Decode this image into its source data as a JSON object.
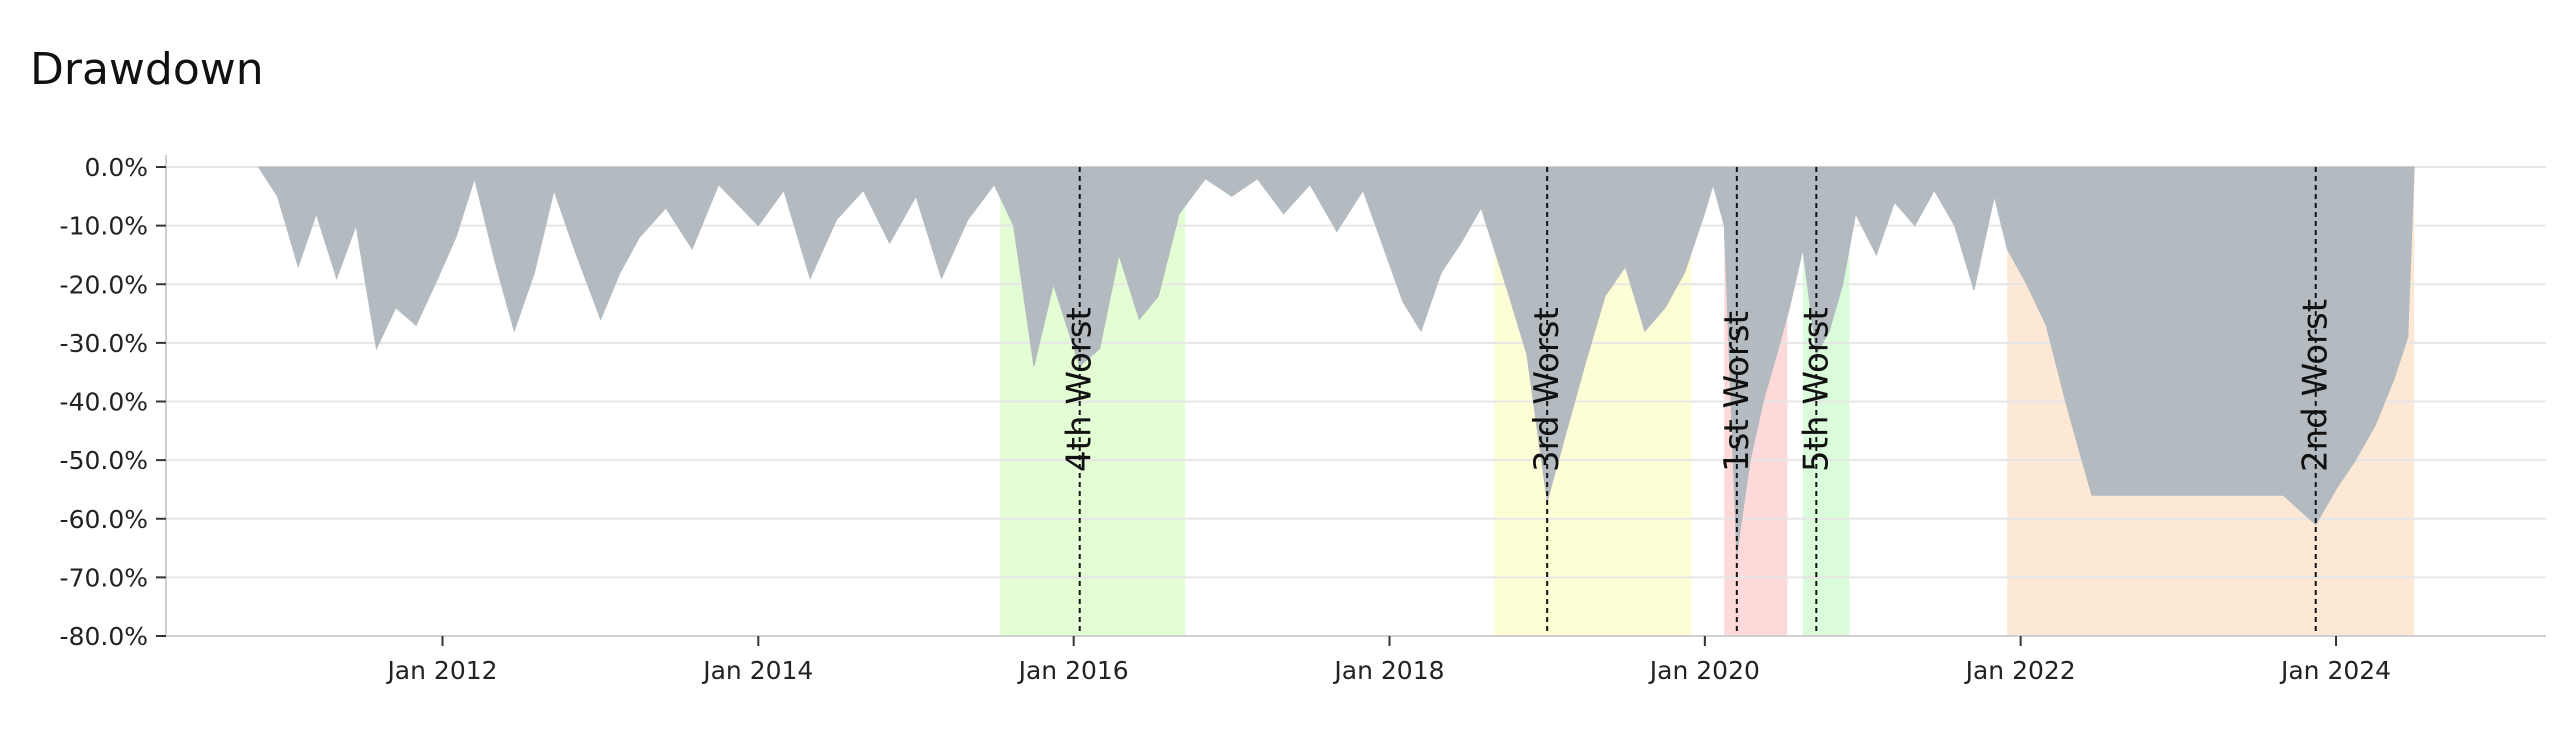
{
  "title": "Drawdown",
  "colors": {
    "drawdown_fill": "#b4bbc0",
    "grid": "#e6e6e6",
    "axis": "#d0d0d0",
    "marker": "#111111"
  },
  "chart_data": {
    "type": "area",
    "title": "Drawdown",
    "xlabel": "",
    "ylabel": "",
    "y_unit": "percent",
    "ylim": [
      -80,
      0
    ],
    "y_ticks": [
      0,
      -10,
      -20,
      -30,
      -40,
      -50,
      -60,
      -70,
      -80
    ],
    "y_tick_labels": [
      "0.0%",
      "-10.0%",
      "-20.0%",
      "-30.0%",
      "-40.0%",
      "-50.0%",
      "-60.0%",
      "-70.0%",
      "-80.0%"
    ],
    "xlim": [
      "2010-04-01",
      "2025-05-01"
    ],
    "x_ticks": [
      "2012-01-01",
      "2014-01-01",
      "2016-01-01",
      "2018-01-01",
      "2020-01-01",
      "2022-01-01",
      "2024-01-01"
    ],
    "x_tick_labels": [
      "Jan 2012",
      "Jan 2014",
      "Jan 2016",
      "Jan 2018",
      "Jan 2020",
      "Jan 2022",
      "Jan 2024"
    ],
    "grid": true,
    "series": [
      {
        "points": [
          [
            "2010-11-01",
            0
          ],
          [
            "2010-12-15",
            -5
          ],
          [
            "2011-02-01",
            -17
          ],
          [
            "2011-03-15",
            -8
          ],
          [
            "2011-05-01",
            -19
          ],
          [
            "2011-06-15",
            -10
          ],
          [
            "2011-08-01",
            -31
          ],
          [
            "2011-09-15",
            -24
          ],
          [
            "2011-11-01",
            -27
          ],
          [
            "2011-12-15",
            -20
          ],
          [
            "2012-02-01",
            -12
          ],
          [
            "2012-03-15",
            -2
          ],
          [
            "2012-05-01",
            -16
          ],
          [
            "2012-06-15",
            -28
          ],
          [
            "2012-08-01",
            -18
          ],
          [
            "2012-09-15",
            -4
          ],
          [
            "2012-11-01",
            -14
          ],
          [
            "2013-01-01",
            -26
          ],
          [
            "2013-02-15",
            -18
          ],
          [
            "2013-04-01",
            -12
          ],
          [
            "2013-06-01",
            -7
          ],
          [
            "2013-08-01",
            -14
          ],
          [
            "2013-10-01",
            -3
          ],
          [
            "2014-01-01",
            -10
          ],
          [
            "2014-03-01",
            -4
          ],
          [
            "2014-05-01",
            -19
          ],
          [
            "2014-07-01",
            -9
          ],
          [
            "2014-09-01",
            -4
          ],
          [
            "2014-11-01",
            -13
          ],
          [
            "2015-01-01",
            -5
          ],
          [
            "2015-03-01",
            -19
          ],
          [
            "2015-05-01",
            -9
          ],
          [
            "2015-07-01",
            -3
          ],
          [
            "2015-08-15",
            -10
          ],
          [
            "2015-10-01",
            -34
          ],
          [
            "2015-11-15",
            -20
          ],
          [
            "2016-01-15",
            -34
          ],
          [
            "2016-03-01",
            -31
          ],
          [
            "2016-04-15",
            -15
          ],
          [
            "2016-06-01",
            -26
          ],
          [
            "2016-07-15",
            -22
          ],
          [
            "2016-09-01",
            -8
          ],
          [
            "2016-11-01",
            -2
          ],
          [
            "2017-01-01",
            -5
          ],
          [
            "2017-03-01",
            -2
          ],
          [
            "2017-05-01",
            -8
          ],
          [
            "2017-07-01",
            -3
          ],
          [
            "2017-09-01",
            -11
          ],
          [
            "2017-11-01",
            -4
          ],
          [
            "2018-02-01",
            -23
          ],
          [
            "2018-03-15",
            -28
          ],
          [
            "2018-05-01",
            -18
          ],
          [
            "2018-06-15",
            -13
          ],
          [
            "2018-08-01",
            -7
          ],
          [
            "2018-10-01",
            -21
          ],
          [
            "2018-11-15",
            -32
          ],
          [
            "2019-01-01",
            -57
          ],
          [
            "2019-02-15",
            -45
          ],
          [
            "2019-04-01",
            -33
          ],
          [
            "2019-05-15",
            -22
          ],
          [
            "2019-07-01",
            -17
          ],
          [
            "2019-08-15",
            -28
          ],
          [
            "2019-10-01",
            -24
          ],
          [
            "2019-11-15",
            -18
          ],
          [
            "2019-12-31",
            -8
          ],
          [
            "2020-01-20",
            -3
          ],
          [
            "2020-02-15",
            -10
          ],
          [
            "2020-03-15",
            -66
          ],
          [
            "2020-04-15",
            -50
          ],
          [
            "2020-05-15",
            -40
          ],
          [
            "2020-06-15",
            -32
          ],
          [
            "2020-07-15",
            -24
          ],
          [
            "2020-08-15",
            -14
          ],
          [
            "2020-09-15",
            -32
          ],
          [
            "2020-10-15",
            -28
          ],
          [
            "2020-11-15",
            -20
          ],
          [
            "2020-12-15",
            -8
          ],
          [
            "2021-02-01",
            -15
          ],
          [
            "2021-03-15",
            -6
          ],
          [
            "2021-05-01",
            -10
          ],
          [
            "2021-06-15",
            -4
          ],
          [
            "2021-08-01",
            -10
          ],
          [
            "2021-09-15",
            -21
          ],
          [
            "2021-11-01",
            -5
          ],
          [
            "2021-12-01",
            -14
          ],
          [
            "2022-01-15",
            -20
          ],
          [
            "2022-03-01",
            -27
          ],
          [
            "2022-04-15",
            -40
          ],
          [
            "2022-05-15",
            -48
          ],
          [
            "2022-06-15",
            -56
          ],
          [
            "2023-01-01",
            -56
          ],
          [
            "2023-06-01",
            -56
          ],
          [
            "2023-09-01",
            -56
          ],
          [
            "2023-11-15",
            -61
          ],
          [
            "2024-01-01",
            -55
          ],
          [
            "2024-02-15",
            -50
          ],
          [
            "2024-04-01",
            -44
          ],
          [
            "2024-05-15",
            -36
          ],
          [
            "2024-06-15",
            -29
          ],
          [
            "2024-06-30",
            0
          ]
        ]
      }
    ],
    "drawdown_periods": [
      {
        "label": "4th Worst",
        "start": "2015-07-15",
        "end": "2016-09-15",
        "trough": "2016-01-15",
        "color": "#e3fdd4"
      },
      {
        "label": "3rd Worst",
        "start": "2018-09-01",
        "end": "2019-12-01",
        "trough": "2019-01-01",
        "color": "#fefed6"
      },
      {
        "label": "1st Worst",
        "start": "2020-02-15",
        "end": "2020-07-10",
        "trough": "2020-03-15",
        "color": "#fdd9d9"
      },
      {
        "label": "5th Worst",
        "start": "2020-08-15",
        "end": "2020-12-01",
        "trough": "2020-09-15",
        "color": "#dafcdb"
      },
      {
        "label": "2nd Worst",
        "start": "2021-12-01",
        "end": "2024-06-30",
        "trough": "2023-11-15",
        "color": "#fde8d6"
      }
    ]
  }
}
